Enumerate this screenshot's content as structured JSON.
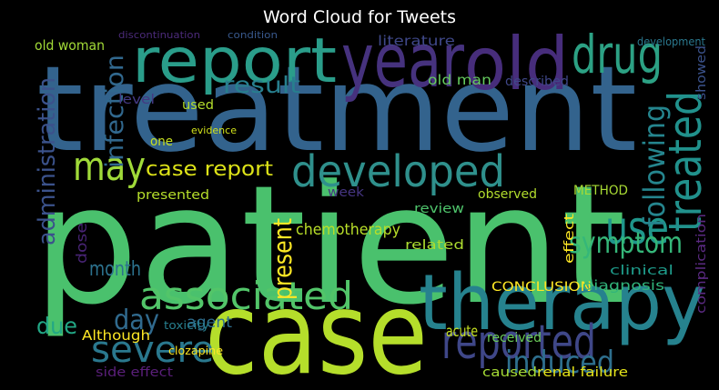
{
  "chart_data": {
    "type": "wordcloud",
    "title": "Word Cloud for Tweets",
    "background": "#000000",
    "words": [
      {
        "text": "treatment",
        "color": "#33638d"
      },
      {
        "text": "patient",
        "color": "#4ac16d"
      },
      {
        "text": "case",
        "color": "#b5de2b"
      },
      {
        "text": "therapy",
        "color": "#26828e"
      },
      {
        "text": "report",
        "color": "#2a9d8a"
      },
      {
        "text": "year",
        "color": "#46327e"
      },
      {
        "text": "old",
        "color": "#472d7b"
      },
      {
        "text": "drug",
        "color": "#2ca184"
      },
      {
        "text": "may",
        "color": "#a0da39"
      },
      {
        "text": "developed",
        "color": "#2f908c"
      },
      {
        "text": "associated",
        "color": "#52c569"
      },
      {
        "text": "severe",
        "color": "#2a788e"
      },
      {
        "text": "reported",
        "color": "#3f4788"
      },
      {
        "text": "induced",
        "color": "#2e6f8e"
      },
      {
        "text": "use",
        "color": "#1f968b"
      },
      {
        "text": "symptom",
        "color": "#35b779"
      },
      {
        "text": "treated",
        "color": "#21918c"
      },
      {
        "text": "following",
        "color": "#25858e"
      },
      {
        "text": "administration",
        "color": "#3b528b"
      },
      {
        "text": "infection",
        "color": "#31688e"
      },
      {
        "text": "present",
        "color": "#fde725"
      },
      {
        "text": "result",
        "color": "#277f8e"
      },
      {
        "text": "case report",
        "color": "#dde318"
      },
      {
        "text": "month",
        "color": "#2c728e"
      },
      {
        "text": "day",
        "color": "#306a8e"
      },
      {
        "text": "due",
        "color": "#22a785"
      },
      {
        "text": "chemotherapy",
        "color": "#b8de29"
      },
      {
        "text": "CONCLUSION",
        "color": "#fde725"
      },
      {
        "text": "Although",
        "color": "#fde725"
      },
      {
        "text": "side effect",
        "color": "#5a1f7a"
      },
      {
        "text": "renal failure",
        "color": "#e5e419"
      },
      {
        "text": "caused",
        "color": "#a5db36"
      },
      {
        "text": "old man",
        "color": "#65cb5e"
      },
      {
        "text": "old woman",
        "color": "#a2da37"
      },
      {
        "text": "literature",
        "color": "#3f4889"
      },
      {
        "text": "diagnosis",
        "color": "#31b57b"
      },
      {
        "text": "clinical",
        "color": "#1e9b8a"
      },
      {
        "text": "review",
        "color": "#4ec36b"
      },
      {
        "text": "observed",
        "color": "#b2dd2d"
      },
      {
        "text": "related",
        "color": "#addc30"
      },
      {
        "text": "METHOD",
        "color": "#a8db34"
      },
      {
        "text": "acute",
        "color": "#c5e021"
      },
      {
        "text": "received",
        "color": "#6ccd5a"
      },
      {
        "text": "presented",
        "color": "#b5de2b"
      },
      {
        "text": "agent",
        "color": "#2e6e8e"
      },
      {
        "text": "dose",
        "color": "#482475"
      },
      {
        "text": "week",
        "color": "#453581"
      },
      {
        "text": "described",
        "color": "#3f4788"
      },
      {
        "text": "effect",
        "color": "#fde725"
      },
      {
        "text": "level",
        "color": "#443983"
      },
      {
        "text": "used",
        "color": "#b4de2c"
      },
      {
        "text": "one",
        "color": "#c8e020"
      },
      {
        "text": "evidence",
        "color": "#d2e21b"
      },
      {
        "text": "clozapine",
        "color": "#fde725"
      },
      {
        "text": "toxicity",
        "color": "#277f8e"
      },
      {
        "text": "showed",
        "color": "#3b528b"
      },
      {
        "text": "complication",
        "color": "#5b2a82"
      },
      {
        "text": "development",
        "color": "#2a788e"
      },
      {
        "text": "condition",
        "color": "#38588c"
      },
      {
        "text": "discontinuation",
        "color": "#4b2a79"
      }
    ]
  }
}
